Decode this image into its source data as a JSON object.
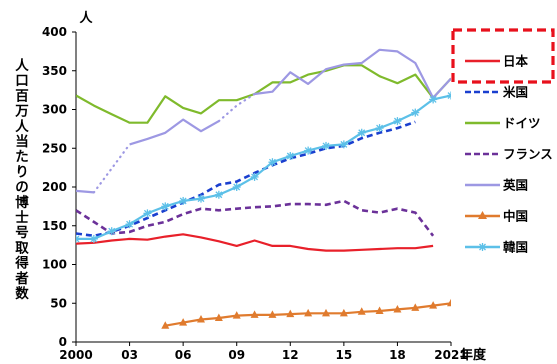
{
  "chart_data": {
    "type": "line",
    "ylabel": "人口百万人当たりの博士号取得者数",
    "y_unit": "人",
    "x_unit": "年度",
    "ylim": [
      0,
      400
    ],
    "yticks": [
      0,
      50,
      100,
      150,
      200,
      250,
      300,
      350,
      400
    ],
    "xlim": [
      2000,
      2021
    ],
    "xticks": [
      {
        "year": 2000,
        "label": "2000"
      },
      {
        "year": 2003,
        "label": "03"
      },
      {
        "year": 2006,
        "label": "06"
      },
      {
        "year": 2009,
        "label": "09"
      },
      {
        "year": 2012,
        "label": "12"
      },
      {
        "year": 2015,
        "label": "15"
      },
      {
        "year": 2018,
        "label": "18"
      },
      {
        "year": 2021,
        "label": "2021"
      }
    ],
    "legend_position": "right",
    "highlighted_series": "日本",
    "highlight_color": "#e8101c",
    "series": [
      {
        "name": "日本",
        "color": "#e8202a",
        "style": "solid",
        "marker": "none",
        "points": [
          [
            2000,
            127
          ],
          [
            2001,
            128
          ],
          [
            2002,
            131
          ],
          [
            2003,
            133
          ],
          [
            2004,
            132
          ],
          [
            2005,
            136
          ],
          [
            2006,
            139
          ],
          [
            2007,
            135
          ],
          [
            2008,
            130
          ],
          [
            2009,
            124
          ],
          [
            2010,
            131
          ],
          [
            2011,
            124
          ],
          [
            2012,
            124
          ],
          [
            2013,
            120
          ],
          [
            2014,
            118
          ],
          [
            2015,
            118
          ],
          [
            2016,
            119
          ],
          [
            2017,
            120
          ],
          [
            2018,
            121
          ],
          [
            2019,
            121
          ],
          [
            2020,
            124
          ]
        ]
      },
      {
        "name": "米国",
        "color": "#1a3fcf",
        "style": "dashed",
        "marker": "none",
        "points": [
          [
            2000,
            140
          ],
          [
            2001,
            137
          ],
          [
            2002,
            142
          ],
          [
            2003,
            150
          ],
          [
            2004,
            160
          ],
          [
            2005,
            170
          ],
          [
            2006,
            180
          ],
          [
            2007,
            190
          ],
          [
            2008,
            203
          ],
          [
            2009,
            207
          ],
          [
            2010,
            218
          ],
          [
            2011,
            228
          ],
          [
            2012,
            237
          ],
          [
            2013,
            243
          ],
          [
            2014,
            250
          ],
          [
            2015,
            253
          ],
          [
            2016,
            263
          ],
          [
            2017,
            270
          ],
          [
            2018,
            276
          ],
          [
            2019,
            284
          ]
        ]
      },
      {
        "name": "ドイツ",
        "color": "#7fba2c",
        "style": "solid",
        "marker": "none",
        "points": [
          [
            2000,
            318
          ],
          [
            2001,
            305
          ],
          [
            2002,
            294
          ],
          [
            2003,
            283
          ],
          [
            2004,
            283
          ],
          [
            2005,
            317
          ],
          [
            2006,
            302
          ],
          [
            2007,
            295
          ],
          [
            2008,
            312
          ],
          [
            2009,
            312
          ],
          [
            2010,
            320
          ],
          [
            2011,
            335
          ],
          [
            2012,
            335
          ],
          [
            2013,
            345
          ],
          [
            2014,
            350
          ],
          [
            2015,
            357
          ],
          [
            2016,
            357
          ],
          [
            2017,
            343
          ],
          [
            2018,
            334
          ],
          [
            2019,
            345
          ],
          [
            2020,
            315
          ],
          [
            2021,
            340
          ]
        ]
      },
      {
        "name": "フランス",
        "color": "#6b3199",
        "style": "dashed",
        "marker": "none",
        "points": [
          [
            2000,
            170
          ],
          [
            2001,
            155
          ],
          [
            2002,
            140
          ],
          [
            2003,
            142
          ],
          [
            2004,
            150
          ],
          [
            2005,
            155
          ],
          [
            2006,
            165
          ],
          [
            2007,
            172
          ],
          [
            2008,
            170
          ],
          [
            2009,
            172
          ],
          [
            2010,
            174
          ],
          [
            2011,
            175
          ],
          [
            2012,
            178
          ],
          [
            2013,
            178
          ],
          [
            2014,
            177
          ],
          [
            2015,
            182
          ],
          [
            2016,
            170
          ],
          [
            2017,
            167
          ],
          [
            2018,
            172
          ],
          [
            2019,
            167
          ],
          [
            2020,
            137
          ]
        ]
      },
      {
        "name": "英国",
        "color": "#9d98e3",
        "style": "solid",
        "marker": "none",
        "points": [
          [
            2000,
            195
          ],
          [
            2001,
            193
          ],
          [
            2003,
            255
          ],
          [
            2004,
            262
          ],
          [
            2005,
            270
          ],
          [
            2006,
            287
          ],
          [
            2007,
            272
          ],
          [
            2008,
            285
          ],
          [
            2009,
            305
          ],
          [
            2010,
            320
          ],
          [
            2011,
            323
          ],
          [
            2012,
            348
          ],
          [
            2013,
            333
          ],
          [
            2014,
            352
          ],
          [
            2015,
            358
          ],
          [
            2016,
            360
          ],
          [
            2017,
            377
          ],
          [
            2018,
            375
          ],
          [
            2019,
            360
          ],
          [
            2020,
            315
          ],
          [
            2021,
            340
          ]
        ],
        "dotted_segments": [
          [
            2001,
            2003
          ],
          [
            2008,
            2010
          ]
        ]
      },
      {
        "name": "中国",
        "color": "#e07b2e",
        "style": "solid",
        "marker": "triangle",
        "points": [
          [
            2005,
            21
          ],
          [
            2006,
            25
          ],
          [
            2007,
            29
          ],
          [
            2008,
            31
          ],
          [
            2009,
            34
          ],
          [
            2010,
            35
          ],
          [
            2011,
            35
          ],
          [
            2012,
            36
          ],
          [
            2013,
            37
          ],
          [
            2014,
            37
          ],
          [
            2015,
            37
          ],
          [
            2016,
            39
          ],
          [
            2017,
            40
          ],
          [
            2018,
            42
          ],
          [
            2019,
            44
          ],
          [
            2020,
            47
          ],
          [
            2021,
            50
          ]
        ]
      },
      {
        "name": "韓国",
        "color": "#5cc0e8",
        "style": "solid",
        "marker": "asterisk",
        "points": [
          [
            2000,
            133
          ],
          [
            2001,
            133
          ],
          [
            2002,
            143
          ],
          [
            2003,
            152
          ],
          [
            2004,
            166
          ],
          [
            2005,
            175
          ],
          [
            2006,
            182
          ],
          [
            2007,
            185
          ],
          [
            2008,
            190
          ],
          [
            2009,
            200
          ],
          [
            2010,
            213
          ],
          [
            2011,
            232
          ],
          [
            2012,
            240
          ],
          [
            2013,
            247
          ],
          [
            2014,
            253
          ],
          [
            2015,
            255
          ],
          [
            2016,
            270
          ],
          [
            2017,
            276
          ],
          [
            2018,
            285
          ],
          [
            2019,
            296
          ],
          [
            2020,
            313
          ],
          [
            2021,
            318
          ]
        ]
      }
    ]
  }
}
